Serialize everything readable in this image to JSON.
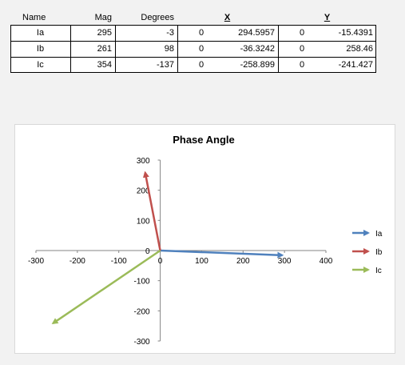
{
  "table": {
    "headers": [
      "Name",
      "Mag",
      "Degrees",
      "X",
      "Y"
    ],
    "rows": [
      {
        "name": "Ia",
        "mag": "295",
        "deg": "-3",
        "x0": "0",
        "x": "294.5957",
        "y0": "0",
        "y": "-15.4391"
      },
      {
        "name": "Ib",
        "mag": "261",
        "deg": "98",
        "x0": "0",
        "x": "-36.3242",
        "y0": "0",
        "y": "258.46"
      },
      {
        "name": "Ic",
        "mag": "354",
        "deg": "-137",
        "x0": "0",
        "x": "-258.899",
        "y0": "0",
        "y": "-241.427"
      }
    ]
  },
  "chart_data": {
    "type": "scatter",
    "title": "Phase Angle",
    "xlabel": "",
    "ylabel": "",
    "xlim": [
      -300,
      400
    ],
    "ylim": [
      -300,
      300
    ],
    "xticks": [
      -300,
      -200,
      -100,
      0,
      100,
      200,
      300,
      400
    ],
    "yticks": [
      300,
      200,
      100,
      0,
      -100,
      -200,
      -300
    ],
    "legend": "right",
    "series": [
      {
        "name": "Ia",
        "color": "#4f81bd",
        "x": [
          0,
          294.5957
        ],
        "y": [
          0,
          -15.4391
        ]
      },
      {
        "name": "Ib",
        "color": "#c0504d",
        "x": [
          0,
          -36.3242
        ],
        "y": [
          0,
          258.46
        ]
      },
      {
        "name": "Ic",
        "color": "#9bbb59",
        "x": [
          0,
          -258.899
        ],
        "y": [
          0,
          -241.427
        ]
      }
    ]
  }
}
